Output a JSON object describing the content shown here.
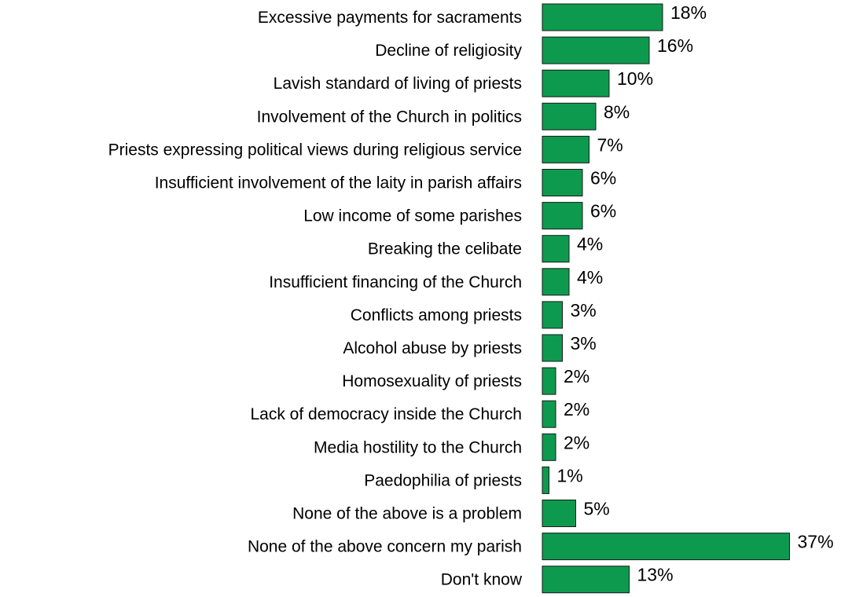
{
  "chart_data": {
    "type": "bar",
    "orientation": "horizontal",
    "title": "",
    "xlabel": "",
    "ylabel": "",
    "grid": false,
    "legend": "none",
    "bar_color": "#0E9A4E",
    "unit": "%",
    "xlim": [
      0,
      37
    ],
    "categories": [
      "Excessive payments for sacraments",
      "Decline of religiosity",
      "Lavish standard of living of priests",
      "Involvement of the Church in politics",
      "Priests expressing political views during religious service",
      "Insufficient involvement of the laity in parish affairs",
      "Low income of some parishes",
      "Breaking the celibate",
      "Insufficient financing of the Church",
      "Conflicts among priests",
      "Alcohol abuse by priests",
      "Homosexuality of priests",
      "Lack of democracy inside the Church",
      "Media hostility to the Church",
      "Paedophilia of priests",
      "None of the above is a problem",
      "None of the above concern my parish",
      "Don't know"
    ],
    "values": [
      18,
      16,
      10,
      8,
      7,
      6,
      6,
      4,
      4,
      3,
      3,
      2,
      2,
      2,
      1,
      5,
      37,
      13
    ],
    "labels": [
      "18%",
      "16%",
      "10%",
      "8%",
      "7%",
      "6%",
      "6%",
      "4%",
      "4%",
      "3%",
      "3%",
      "2%",
      "2%",
      "2%",
      "1%",
      "5%",
      "37%",
      "13%"
    ]
  }
}
